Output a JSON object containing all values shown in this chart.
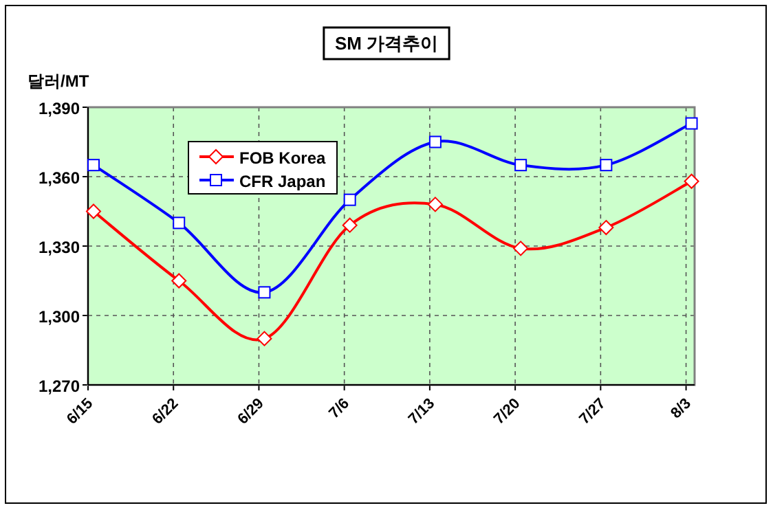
{
  "chart_data": {
    "type": "line",
    "title": "SM 가격추이",
    "ylabel": "달러/MT",
    "categories": [
      "6/15",
      "6/22",
      "6/29",
      "7/6",
      "7/13",
      "7/20",
      "7/27",
      "8/3"
    ],
    "series": [
      {
        "name": "FOB Korea",
        "color": "#ff0000",
        "marker": "diamond",
        "values": [
          1345,
          1315,
          1290,
          1339,
          1348,
          1329,
          1338,
          1358
        ]
      },
      {
        "name": "CFR Japan",
        "color": "#0000ff",
        "marker": "square",
        "values": [
          1365,
          1340,
          1310,
          1350,
          1375,
          1365,
          1365,
          1383
        ]
      }
    ],
    "ylim": [
      1270,
      1390
    ],
    "yticks": [
      {
        "value": 1270,
        "label": "1,270"
      },
      {
        "value": 1300,
        "label": "1,300"
      },
      {
        "value": 1330,
        "label": "1,330"
      },
      {
        "value": 1360,
        "label": "1,360"
      },
      {
        "value": 1390,
        "label": "1,390"
      }
    ],
    "grid": true,
    "legend": "top left"
  }
}
